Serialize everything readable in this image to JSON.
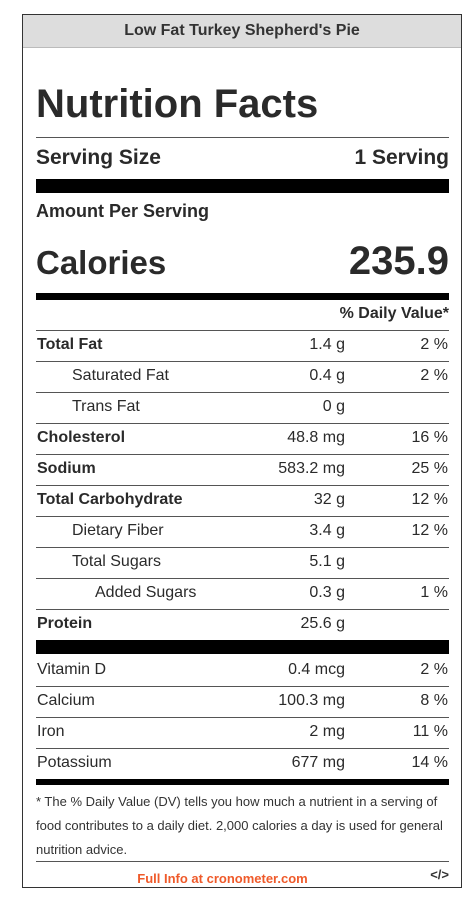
{
  "recipe_title": "Low Fat Turkey Shepherd's Pie",
  "heading": "Nutrition Facts",
  "serving": {
    "label": "Serving Size",
    "value": "1 Serving"
  },
  "amount_per_serving": "Amount Per Serving",
  "calories": {
    "label": "Calories",
    "value": "235.9"
  },
  "dv_header": "% Daily Value*",
  "nutrients": [
    {
      "name": "Total Fat",
      "amount": "1.4 g",
      "dv": "2 %"
    },
    {
      "name": "Saturated Fat",
      "amount": "0.4 g",
      "dv": "2 %"
    },
    {
      "name": "Trans Fat",
      "amount": "0 g",
      "dv": ""
    },
    {
      "name": "Cholesterol",
      "amount": "48.8 mg",
      "dv": "16 %"
    },
    {
      "name": "Sodium",
      "amount": "583.2 mg",
      "dv": "25 %"
    },
    {
      "name": "Total Carbohydrate",
      "amount": "32 g",
      "dv": "12 %"
    },
    {
      "name": "Dietary Fiber",
      "amount": "3.4 g",
      "dv": "12 %"
    },
    {
      "name": "Total Sugars",
      "amount": "5.1 g",
      "dv": ""
    },
    {
      "name": "Added Sugars",
      "amount": "0.3 g",
      "dv": "1 %"
    },
    {
      "name": "Protein",
      "amount": "25.6 g",
      "dv": ""
    }
  ],
  "vitamins": [
    {
      "name": "Vitamin D",
      "amount": "0.4 mcg",
      "dv": "2 %"
    },
    {
      "name": "Calcium",
      "amount": "100.3 mg",
      "dv": "8 %"
    },
    {
      "name": "Iron",
      "amount": "2 mg",
      "dv": "11 %"
    },
    {
      "name": "Potassium",
      "amount": "677 mg",
      "dv": "14 %"
    }
  ],
  "footnote": "* The % Daily Value (DV) tells you how much a nutrient in a serving of food contributes to a daily diet. 2,000 calories a day is used for general nutrition advice.",
  "full_info_link": "Full Info at cronometer.com",
  "embed_icon_text": "</>",
  "colors": {
    "link": "#ef5a2a",
    "title_bar": "#dddddd"
  }
}
